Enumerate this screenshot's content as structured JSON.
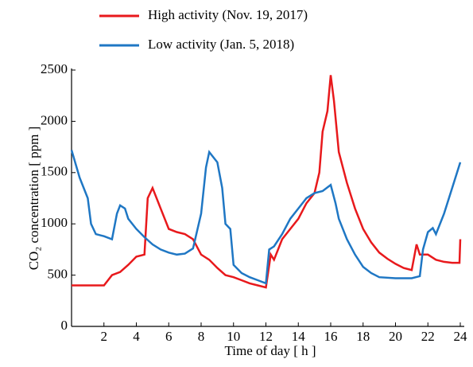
{
  "chart_data": {
    "type": "line",
    "xlabel": "Time of day [ h ]",
    "ylabel": "CO₂ concentration [ ppm ]",
    "xlim": [
      0,
      24
    ],
    "xticks": [
      2,
      4,
      6,
      8,
      10,
      12,
      14,
      16,
      18,
      20,
      22,
      24
    ],
    "ylim": [
      0,
      2500
    ],
    "yticks": [
      0,
      500,
      1000,
      1500,
      2000,
      2500
    ],
    "series": [
      {
        "name": "High activity (Nov. 19, 2017)",
        "color": "#e8191c",
        "x": [
          0,
          1,
          2,
          2.5,
          3,
          3.5,
          4,
          4.5,
          4.7,
          5,
          5.5,
          6,
          6.5,
          7,
          7.5,
          8,
          8.5,
          9,
          9.5,
          10,
          10.5,
          11,
          11.5,
          12,
          12.3,
          12.5,
          13,
          13.5,
          14,
          14.5,
          15,
          15.3,
          15.5,
          15.8,
          16,
          16.2,
          16.5,
          17,
          17.5,
          18,
          18.5,
          19,
          19.5,
          20,
          20.5,
          21,
          21.3,
          21.5,
          22,
          22.5,
          23,
          23.5,
          23.95,
          24
        ],
        "values": [
          400,
          400,
          400,
          500,
          530,
          600,
          680,
          700,
          1250,
          1350,
          1150,
          950,
          920,
          900,
          850,
          700,
          650,
          570,
          500,
          480,
          450,
          420,
          400,
          380,
          700,
          650,
          850,
          950,
          1050,
          1200,
          1300,
          1500,
          1900,
          2100,
          2450,
          2200,
          1700,
          1400,
          1150,
          950,
          820,
          720,
          660,
          610,
          570,
          550,
          800,
          700,
          700,
          650,
          630,
          620,
          620,
          850
        ]
      },
      {
        "name": "Low activity (Jan. 5, 2018)",
        "color": "#1f77c4",
        "x": [
          0,
          0.5,
          1,
          1.2,
          1.5,
          2,
          2.5,
          2.8,
          3,
          3.3,
          3.5,
          4,
          4.5,
          5,
          5.5,
          6,
          6.5,
          7,
          7.5,
          8,
          8.3,
          8.5,
          9,
          9.3,
          9.5,
          9.8,
          10,
          10.5,
          11,
          11.5,
          12,
          12.2,
          12.5,
          13,
          13.5,
          14,
          14.5,
          15,
          15.5,
          16,
          16.3,
          16.5,
          17,
          17.5,
          18,
          18.5,
          19,
          20,
          21,
          21.5,
          21.7,
          22,
          22.3,
          22.5,
          23,
          23.5,
          24
        ],
        "values": [
          1720,
          1450,
          1250,
          1000,
          900,
          880,
          850,
          1100,
          1180,
          1150,
          1050,
          950,
          870,
          800,
          750,
          720,
          700,
          710,
          760,
          1100,
          1550,
          1700,
          1600,
          1350,
          1000,
          950,
          600,
          520,
          480,
          450,
          420,
          750,
          780,
          900,
          1050,
          1150,
          1250,
          1300,
          1320,
          1380,
          1200,
          1050,
          850,
          700,
          580,
          520,
          480,
          470,
          470,
          490,
          750,
          920,
          960,
          900,
          1100,
          1350,
          1600
        ]
      }
    ]
  }
}
